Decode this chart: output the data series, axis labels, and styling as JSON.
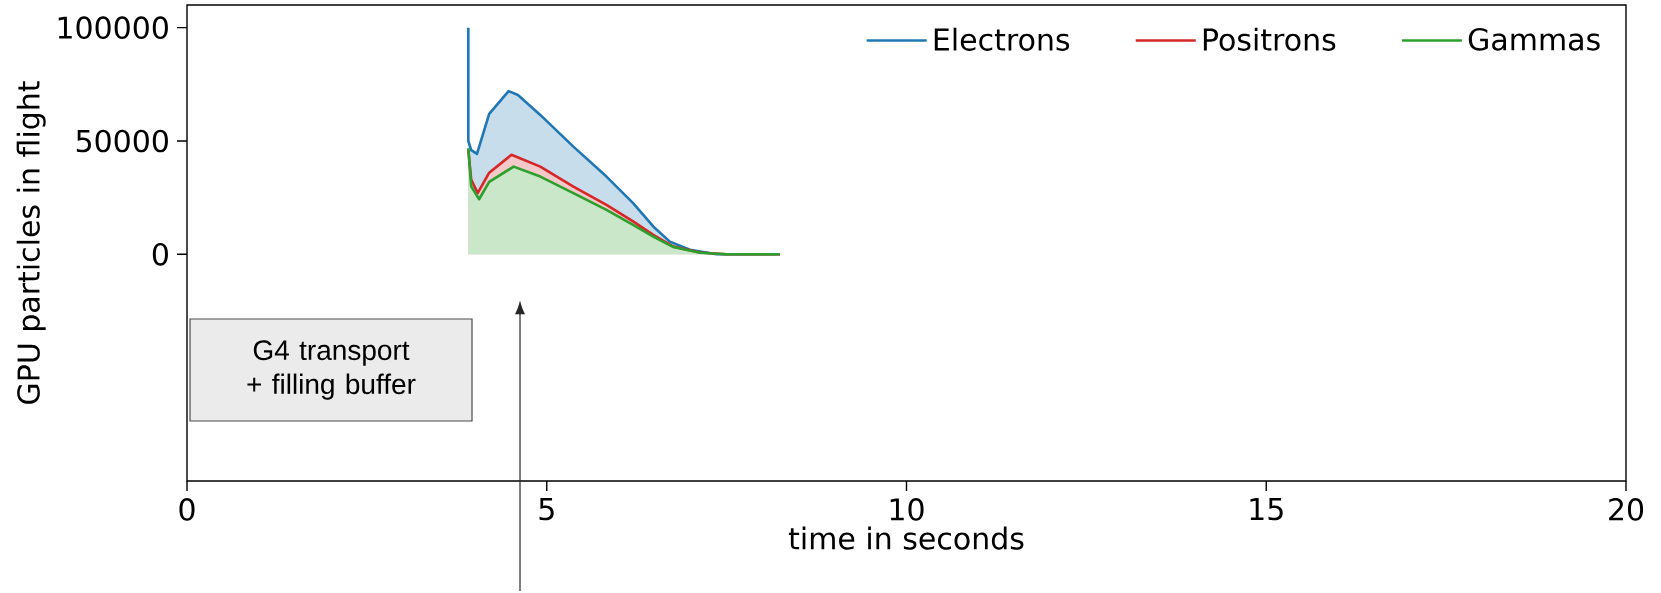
{
  "chart_data": {
    "type": "area",
    "xlabel": "time in seconds",
    "ylabel": "GPU particles in flight",
    "annotations": [
      "G4 transport + filling buffer"
    ],
    "xlim": [
      0,
      20
    ],
    "ylim": [
      -100000,
      110000
    ],
    "xticks": [
      0,
      5,
      10,
      15,
      20
    ],
    "yticks": [
      0,
      50000,
      100000
    ],
    "legend": "top right",
    "series": [
      {
        "name": "Electrons",
        "color": "#1f77b4",
        "x": [
          3.91,
          3.91,
          3.95,
          4.03,
          4.2,
          4.47,
          4.6,
          4.91,
          5.37,
          5.83,
          6.2,
          6.48,
          6.71,
          6.99,
          7.36,
          8.24
        ],
        "values": [
          100000,
          50000,
          46000,
          44300,
          62000,
          72000,
          70300,
          61500,
          47500,
          34300,
          22600,
          12300,
          5600,
          2000,
          0,
          0
        ]
      },
      {
        "name": "Positrons",
        "color": "#d62728",
        "x": [
          3.91,
          3.95,
          4.04,
          4.2,
          4.51,
          4.91,
          5.37,
          5.83,
          6.2,
          6.48,
          6.76,
          7.13,
          7.5,
          8.24
        ],
        "values": [
          46000,
          33000,
          27000,
          36000,
          43900,
          38700,
          29900,
          21800,
          14500,
          8600,
          3400,
          800,
          0,
          0
        ]
      },
      {
        "name": "Gammas",
        "color": "#2ca02c",
        "x": [
          3.91,
          3.95,
          4.06,
          4.2,
          4.54,
          4.91,
          5.37,
          5.83,
          6.2,
          6.48,
          6.76,
          7.13,
          7.5,
          8.24
        ],
        "values": [
          46800,
          30000,
          24300,
          32000,
          38700,
          34300,
          27000,
          19600,
          13000,
          7800,
          3200,
          700,
          0,
          0
        ]
      }
    ]
  }
}
